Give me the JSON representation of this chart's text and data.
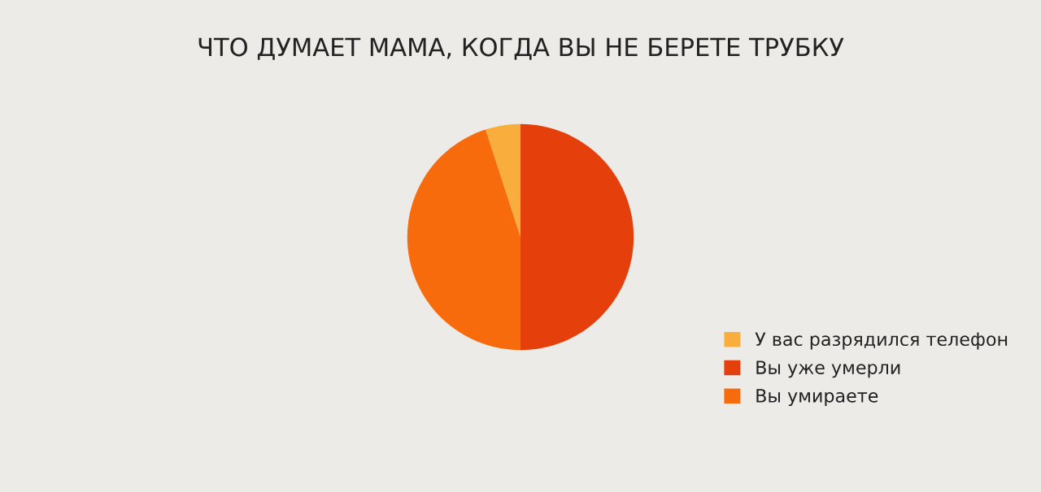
{
  "chart_data": {
    "type": "pie",
    "title": "ЧТО ДУМАЕТ МАМА, КОГДА ВЫ НЕ БЕРЕТЕ ТРУБКУ",
    "categories": [
      "У вас разрядился телефон",
      "Вы уже умерли",
      "Вы умираете"
    ],
    "values": [
      5,
      50,
      45
    ],
    "colors": [
      "#f9ad3c",
      "#e5400c",
      "#f76b0c"
    ],
    "legend": "right"
  }
}
